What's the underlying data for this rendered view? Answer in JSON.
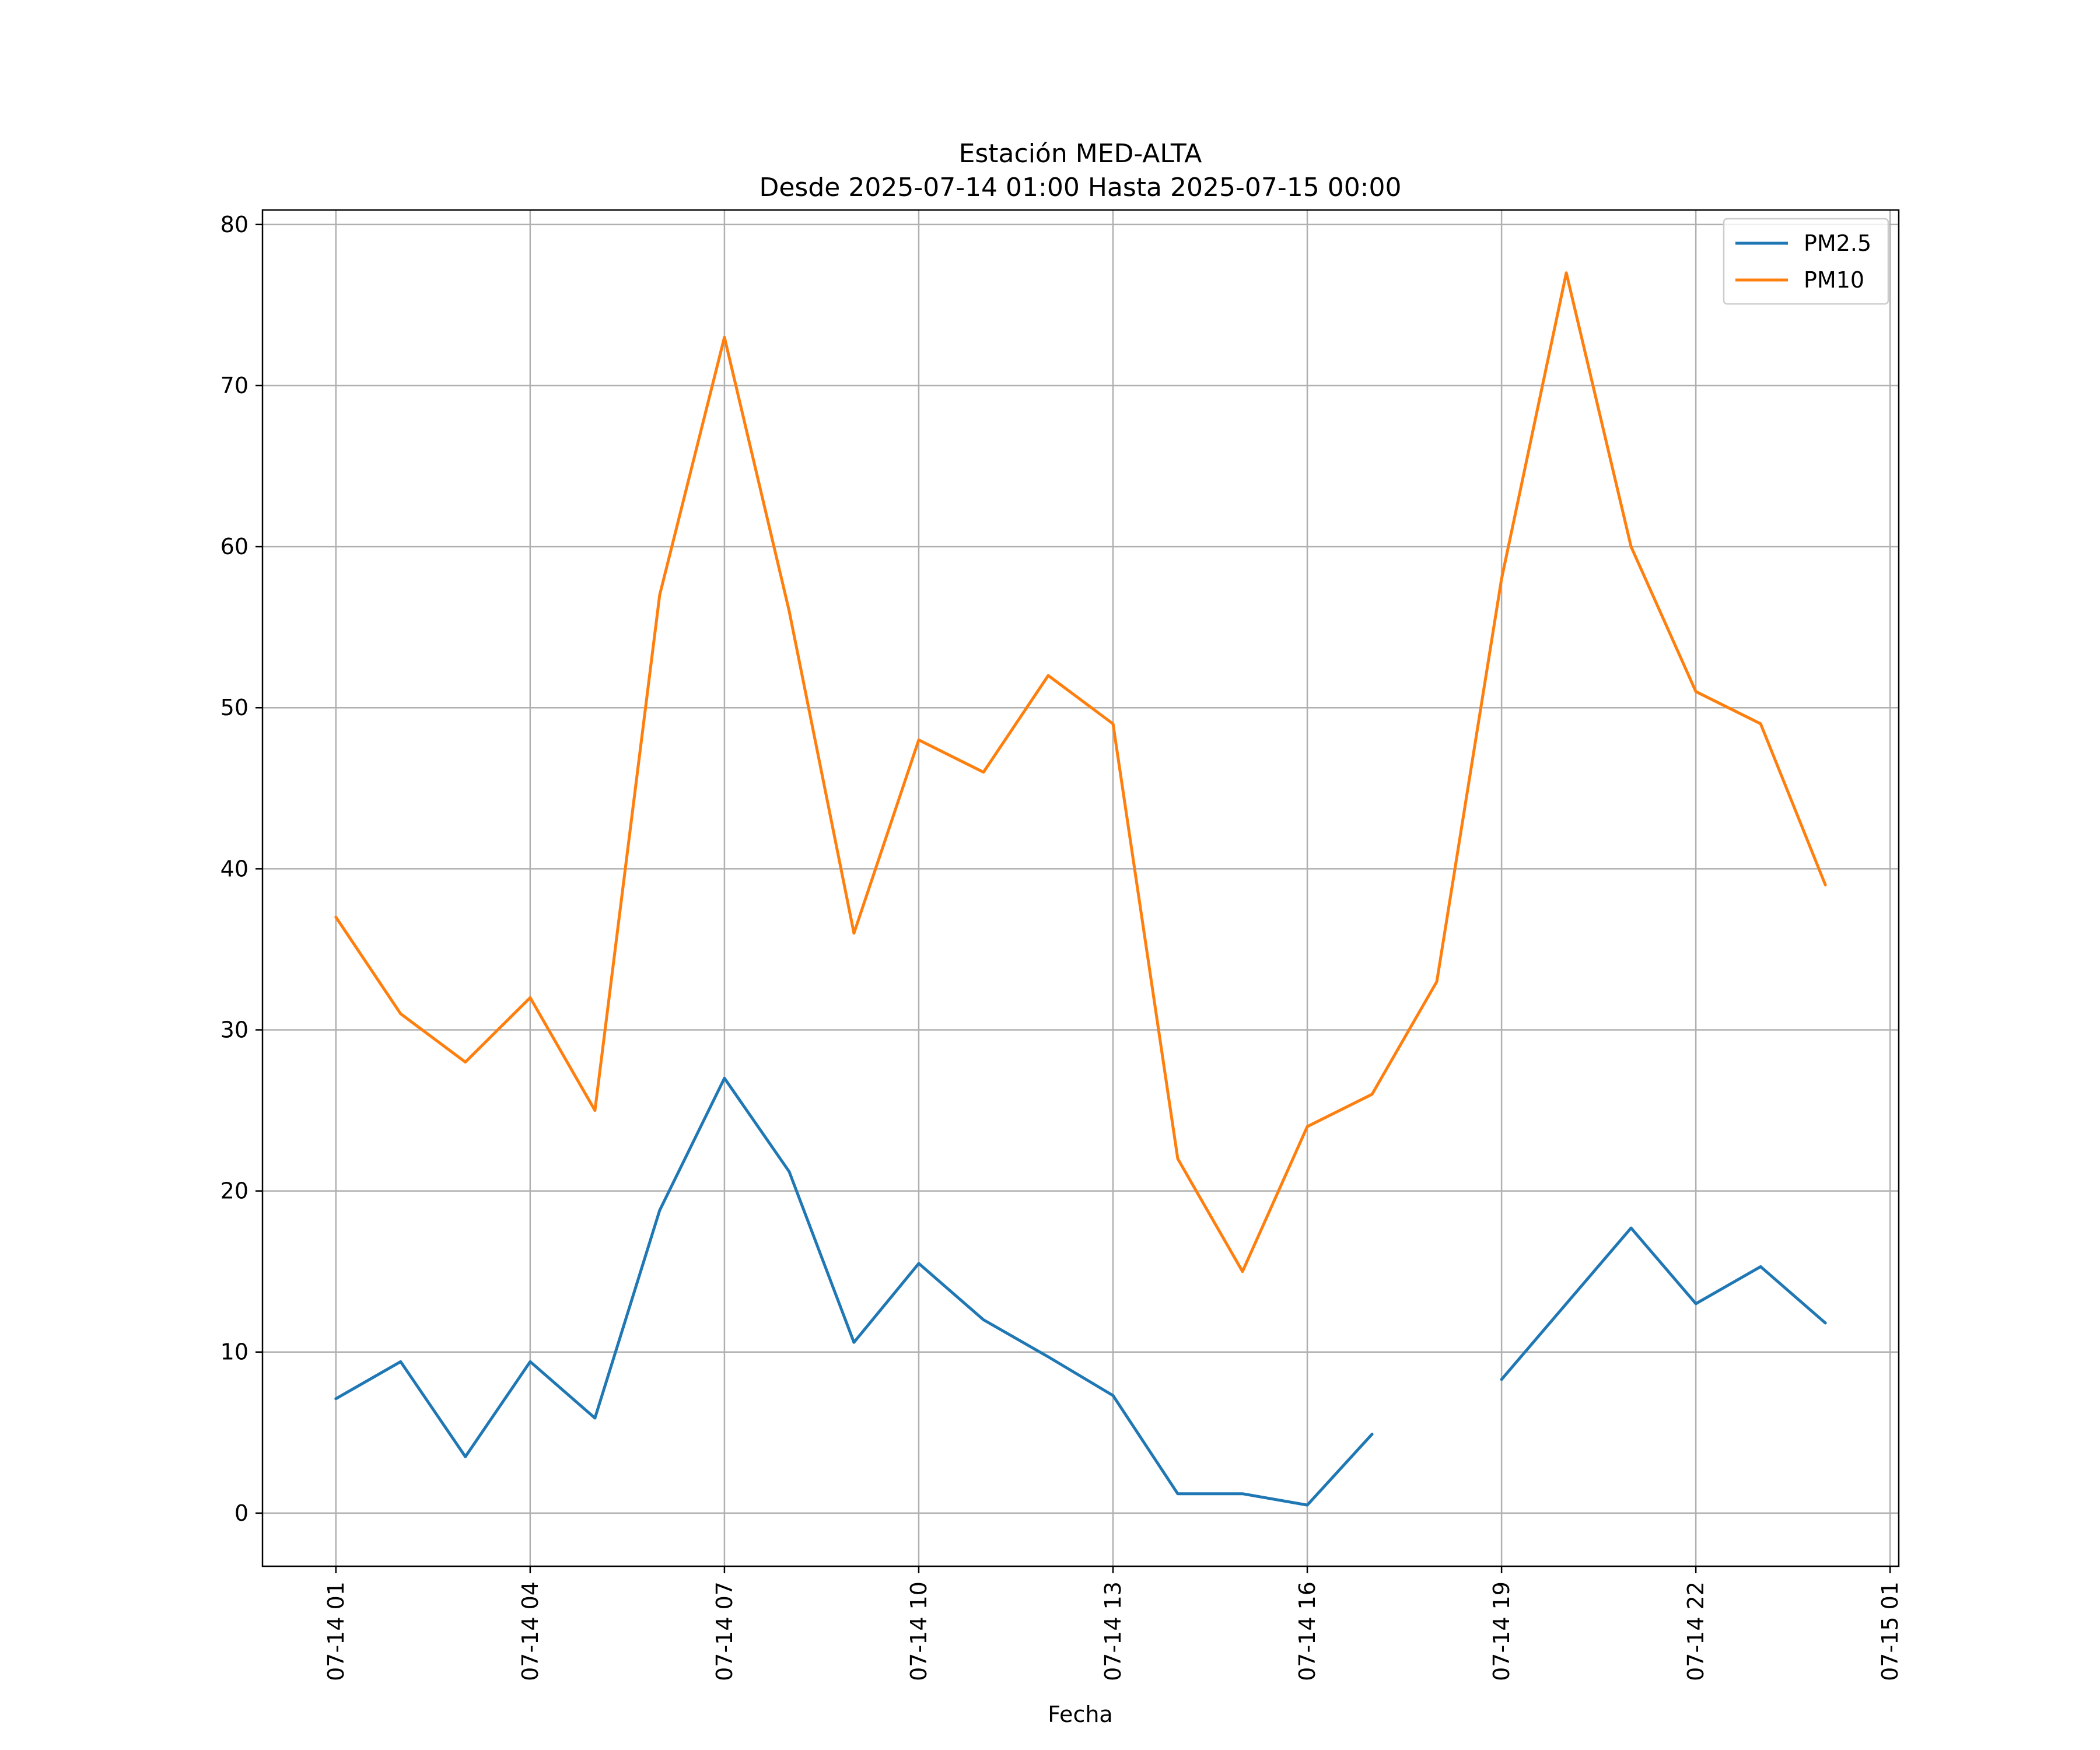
{
  "chart_data": {
    "type": "line",
    "title": "Estación MED-ALTA",
    "subtitle": "Desde 2025-07-14 01:00 Hasta 2025-07-15 00:00",
    "xlabel": "Fecha",
    "ylabel": "",
    "x": [
      "07-14 01",
      "07-14 02",
      "07-14 03",
      "07-14 04",
      "07-14 05",
      "07-14 06",
      "07-14 07",
      "07-14 08",
      "07-14 09",
      "07-14 10",
      "07-14 11",
      "07-14 12",
      "07-14 13",
      "07-14 14",
      "07-14 15",
      "07-14 16",
      "07-14 17",
      "07-14 18",
      "07-14 19",
      "07-14 20",
      "07-14 21",
      "07-14 22",
      "07-14 23",
      "07-15 00"
    ],
    "x_ticks": [
      "07-14 01",
      "07-14 04",
      "07-14 07",
      "07-14 10",
      "07-14 13",
      "07-14 16",
      "07-14 19",
      "07-14 22",
      "07-15 01"
    ],
    "xlim": [
      "07-13 23:52",
      "07-15 01:08"
    ],
    "ylim": [
      -3.3,
      80.9
    ],
    "y_ticks": [
      0,
      10,
      20,
      30,
      40,
      50,
      60,
      70,
      80
    ],
    "grid": true,
    "legend_position": "top-right",
    "series": [
      {
        "name": "PM2.5",
        "color": "#1f77b4",
        "values": [
          7.1,
          9.4,
          3.5,
          9.4,
          5.9,
          18.8,
          27.0,
          21.2,
          10.6,
          15.5,
          12.0,
          9.7,
          7.3,
          1.2,
          1.2,
          0.5,
          4.9,
          null,
          8.3,
          13.0,
          17.7,
          13.0,
          15.3,
          11.8
        ]
      },
      {
        "name": "PM10",
        "color": "#ff7f0e",
        "values": [
          37,
          31,
          28,
          32,
          25,
          57,
          73,
          56,
          36,
          48,
          46,
          52,
          49,
          22,
          15,
          24,
          26,
          33,
          58,
          77,
          60,
          51,
          49,
          39
        ]
      }
    ]
  }
}
